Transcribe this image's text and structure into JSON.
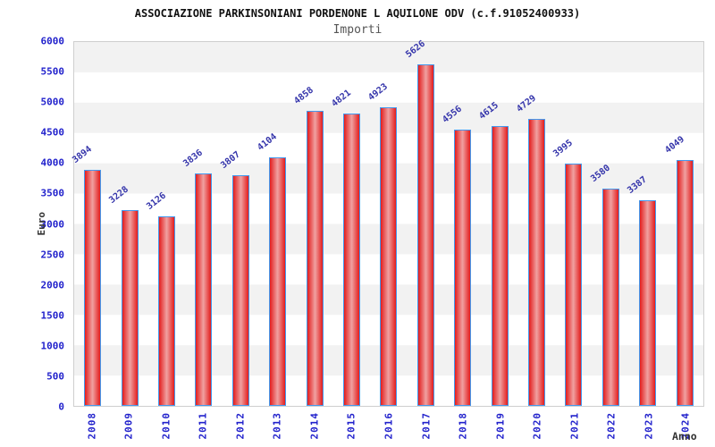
{
  "header": {
    "title": "ASSOCIAZIONE PARKINSONIANI PORDENONE L AQUILONE ODV (c.f.91052400933)",
    "subtitle": "Importi"
  },
  "chart_data": {
    "type": "bar",
    "title": "ASSOCIAZIONE PARKINSONIANI PORDENONE L AQUILONE ODV (c.f.91052400933)",
    "subtitle": "Importi",
    "xlabel": "Anno",
    "ylabel": "Euro",
    "categories": [
      "2008",
      "2009",
      "2010",
      "2011",
      "2012",
      "2013",
      "2014",
      "2015",
      "2016",
      "2017",
      "2018",
      "2019",
      "2020",
      "2021",
      "2022",
      "2023",
      "2024"
    ],
    "values": [
      3894,
      3228,
      3126,
      3836,
      3807,
      4104,
      4858,
      4821,
      4923,
      5626,
      4556,
      4615,
      4729,
      3995,
      3580,
      3387,
      4049
    ],
    "ylim": [
      0,
      6000
    ],
    "yticks": [
      0,
      500,
      1000,
      1500,
      2000,
      2500,
      3000,
      3500,
      4000,
      4500,
      5000,
      5500,
      6000
    ],
    "grid": "horizontal-bands-alternating",
    "legend": "none",
    "colors": {
      "bar_fill_edge": "#e31d1d",
      "bar_fill_center": "#f0a1a1",
      "bar_border": "#4499ee",
      "tick_label": "#2222cc",
      "value_label": "#3333aa",
      "axis_label": "#333333",
      "band_gray": "#f2f2f2",
      "band_white": "#ffffff",
      "plot_border": "#cfcfcf"
    }
  }
}
